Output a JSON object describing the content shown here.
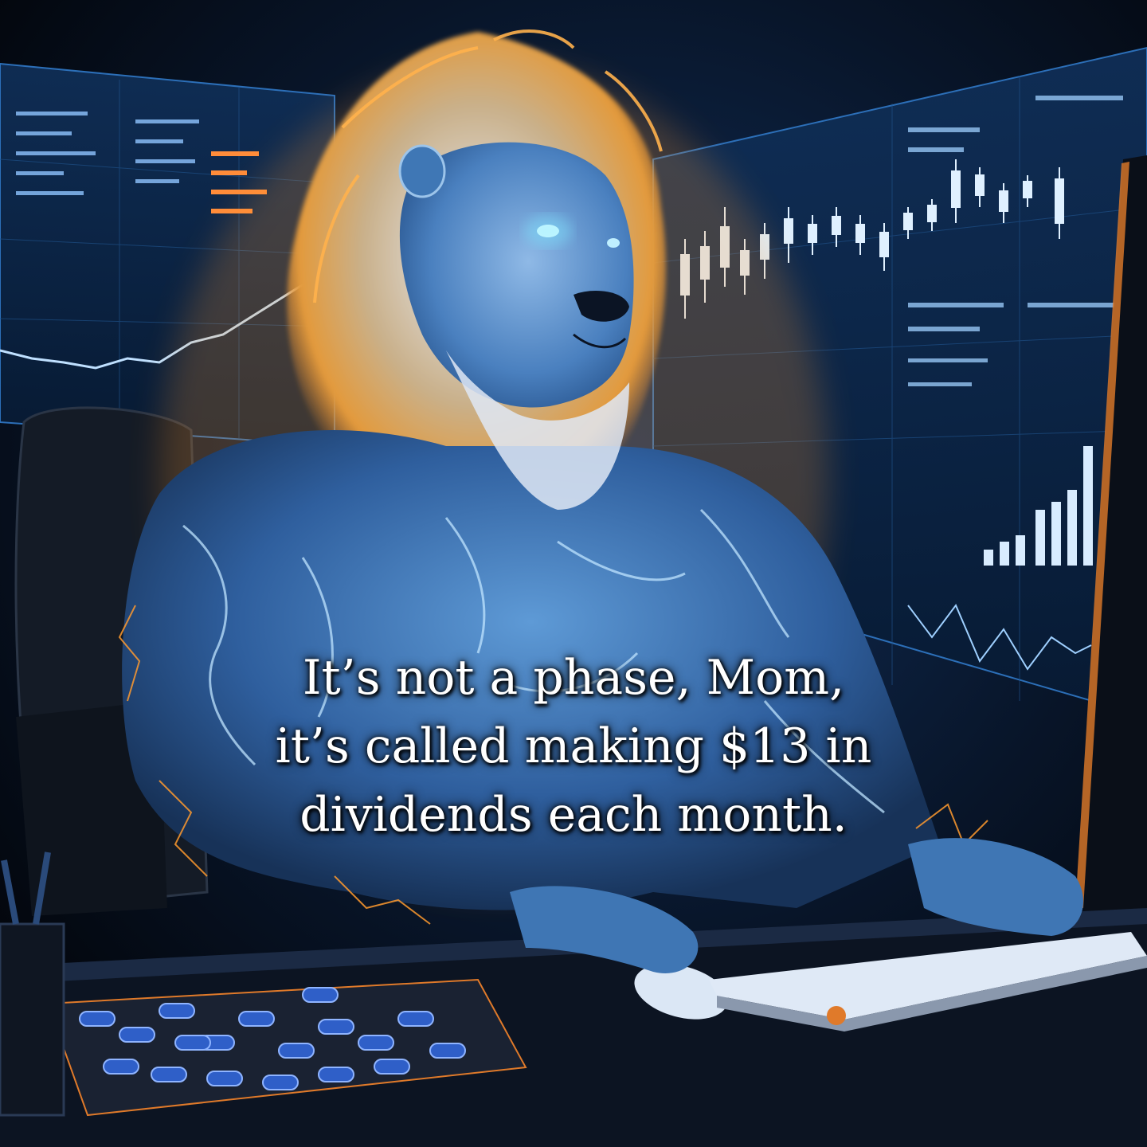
{
  "caption": {
    "lines": [
      "It’s not a phase, Mom,",
      "it’s called making $13 in",
      "dividends each month."
    ]
  },
  "colors": {
    "background": "#05080f",
    "screen_glow": "#1e6fd0",
    "screen_panel": "#0b1d3a",
    "lion_body": "#3d7fc4",
    "lion_mane": "#e9b06a",
    "electric_orange": "#ff9a2e",
    "desk": "#0c1422",
    "pills": "#2f5fc8",
    "caption_text": "#ffffff"
  }
}
